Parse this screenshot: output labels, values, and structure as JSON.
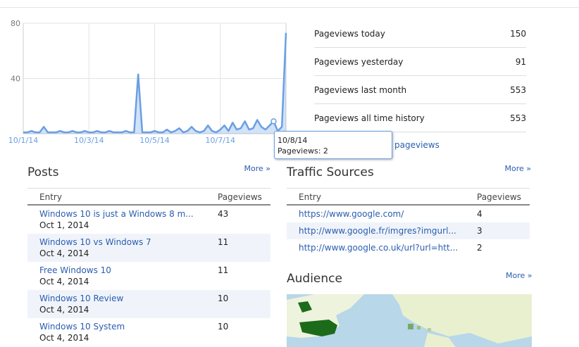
{
  "chart_data": {
    "type": "area",
    "categories": [
      "10/1/14",
      null,
      null,
      null,
      null,
      null,
      null,
      null,
      null,
      null,
      null,
      null,
      null,
      null,
      null,
      null,
      "10/3/14",
      null,
      null,
      null,
      null,
      null,
      null,
      null,
      null,
      null,
      null,
      null,
      null,
      null,
      null,
      null,
      "10/5/14",
      null,
      null,
      null,
      null,
      null,
      null,
      null,
      null,
      null,
      null,
      null,
      null,
      null,
      null,
      null,
      "10/7/14",
      null,
      null,
      null,
      null,
      null,
      null,
      null,
      null,
      null,
      null,
      null,
      null,
      null,
      null,
      null,
      null
    ],
    "values": [
      1,
      1,
      2,
      1,
      1,
      5,
      1,
      1,
      1,
      2,
      1,
      1,
      2,
      1,
      1,
      2,
      1,
      1,
      2,
      1,
      1,
      2,
      1,
      1,
      1,
      2,
      1,
      1,
      43,
      1,
      1,
      1,
      2,
      1,
      1,
      3,
      1,
      2,
      4,
      1,
      2,
      5,
      2,
      1,
      2,
      6,
      2,
      1,
      3,
      6,
      2,
      8,
      3,
      4,
      9,
      3,
      4,
      10,
      5,
      3,
      6,
      9,
      2,
      5,
      73
    ],
    "color": "#6a9fe3",
    "ylim": [
      0,
      80
    ],
    "yticks": [
      40,
      80
    ],
    "grid": true,
    "tooltip": {
      "date": "10/8/14",
      "text": "Pageviews: 2"
    }
  },
  "stats": {
    "rows": [
      {
        "label": "Pageviews today",
        "value": "150"
      },
      {
        "label": "Pageviews yesterday",
        "value": "91"
      },
      {
        "label": "Pageviews last month",
        "value": "553"
      },
      {
        "label": "Pageviews all time history",
        "value": "553"
      }
    ],
    "link": "pageviews"
  },
  "posts": {
    "title": "Posts",
    "more": "More »",
    "columns": [
      "Entry",
      "Pageviews"
    ],
    "rows": [
      {
        "title": "Windows 10 is just a Windows 8 m...",
        "date": "Oct 1, 2014",
        "pageviews": "43"
      },
      {
        "title": "Windows 10 vs Windows 7",
        "date": "Oct 4, 2014",
        "pageviews": "11"
      },
      {
        "title": "Free Windows 10",
        "date": "Oct 4, 2014",
        "pageviews": "11"
      },
      {
        "title": "Windows 10 Review",
        "date": "Oct 4, 2014",
        "pageviews": "10"
      },
      {
        "title": "Windows 10 System",
        "date": "Oct 4, 2014",
        "pageviews": "10"
      }
    ]
  },
  "traffic": {
    "title": "Traffic Sources",
    "more": "More »",
    "columns": [
      "Entry",
      "Pageviews"
    ],
    "rows": [
      {
        "url": "https://www.google.com/",
        "pageviews": "4"
      },
      {
        "url": "http://www.google.fr/imgres?imgurl...",
        "pageviews": "3"
      },
      {
        "url": "http://www.google.co.uk/url?url=htt...",
        "pageviews": "2"
      }
    ]
  },
  "audience": {
    "title": "Audience",
    "more": "More »"
  }
}
